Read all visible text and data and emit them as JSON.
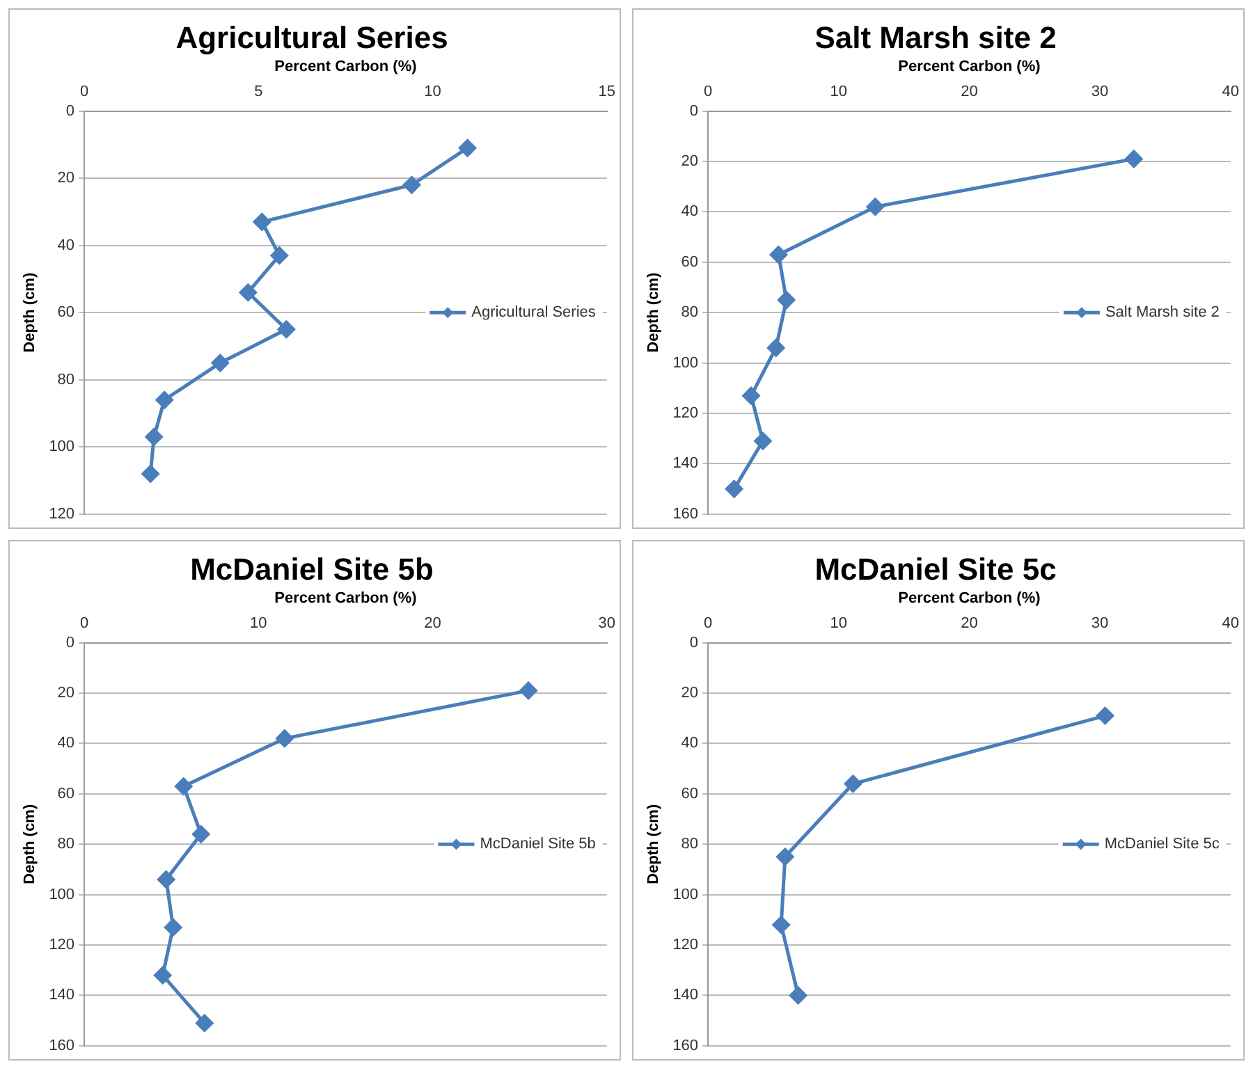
{
  "chart_data": [
    {
      "type": "line",
      "title": "Agricultural Series",
      "xlabel": "Percent Carbon (%)",
      "ylabel": "Depth (cm)",
      "x": [
        11.0,
        9.4,
        5.1,
        5.6,
        4.7,
        5.8,
        3.9,
        2.3,
        2.0,
        1.9
      ],
      "series": [
        {
          "name": "Agricultural Series",
          "color": "#4a7ebb",
          "values": [
            11,
            22,
            33,
            43,
            54,
            65,
            75,
            86,
            97,
            108
          ]
        }
      ],
      "xlim": [
        0,
        15
      ],
      "xticks": [
        0,
        5,
        10,
        15
      ],
      "ylim": [
        120,
        0
      ],
      "yticks": [
        0,
        20,
        40,
        60,
        80,
        100,
        120
      ],
      "grid": "y",
      "legend": "right",
      "marker": "diamond"
    },
    {
      "type": "line",
      "title": "Salt Marsh site 2",
      "xlabel": "Percent Carbon (%)",
      "ylabel": "Depth (cm)",
      "x": [
        32.6,
        12.8,
        5.4,
        6.0,
        5.2,
        3.3,
        4.2,
        2.0
      ],
      "series": [
        {
          "name": "Salt Marsh site 2",
          "color": "#4a7ebb",
          "values": [
            19,
            38,
            57,
            75,
            94,
            113,
            131,
            150
          ]
        }
      ],
      "xlim": [
        0,
        40
      ],
      "xticks": [
        0,
        10,
        20,
        30,
        40
      ],
      "ylim": [
        160,
        0
      ],
      "yticks": [
        0,
        20,
        40,
        60,
        80,
        100,
        120,
        140,
        160
      ],
      "grid": "y",
      "legend": "right",
      "marker": "diamond"
    },
    {
      "type": "line",
      "title": "McDaniel Site 5b",
      "xlabel": "Percent Carbon (%)",
      "ylabel": "Depth (cm)",
      "x": [
        25.5,
        11.5,
        5.7,
        6.7,
        4.7,
        5.1,
        4.5,
        6.9
      ],
      "series": [
        {
          "name": "McDaniel Site 5b",
          "color": "#4a7ebb",
          "values": [
            19,
            38,
            57,
            76,
            94,
            113,
            132,
            151
          ]
        }
      ],
      "xlim": [
        0,
        30
      ],
      "xticks": [
        0,
        10,
        20,
        30
      ],
      "ylim": [
        160,
        0
      ],
      "yticks": [
        0,
        20,
        40,
        60,
        80,
        100,
        120,
        140,
        160
      ],
      "grid": "y",
      "legend": "right",
      "marker": "diamond"
    },
    {
      "type": "line",
      "title": "McDaniel Site 5c",
      "xlabel": "Percent Carbon (%)",
      "ylabel": "Depth (cm)",
      "x": [
        30.4,
        11.1,
        5.9,
        5.6,
        6.9
      ],
      "series": [
        {
          "name": "McDaniel Site 5c",
          "color": "#4a7ebb",
          "values": [
            29,
            56,
            85,
            112,
            140
          ]
        }
      ],
      "xlim": [
        0,
        40
      ],
      "xticks": [
        0,
        10,
        20,
        30,
        40
      ],
      "ylim": [
        160,
        0
      ],
      "yticks": [
        0,
        20,
        40,
        60,
        80,
        100,
        120,
        140,
        160
      ],
      "grid": "y",
      "legend": "right",
      "marker": "diamond"
    }
  ]
}
